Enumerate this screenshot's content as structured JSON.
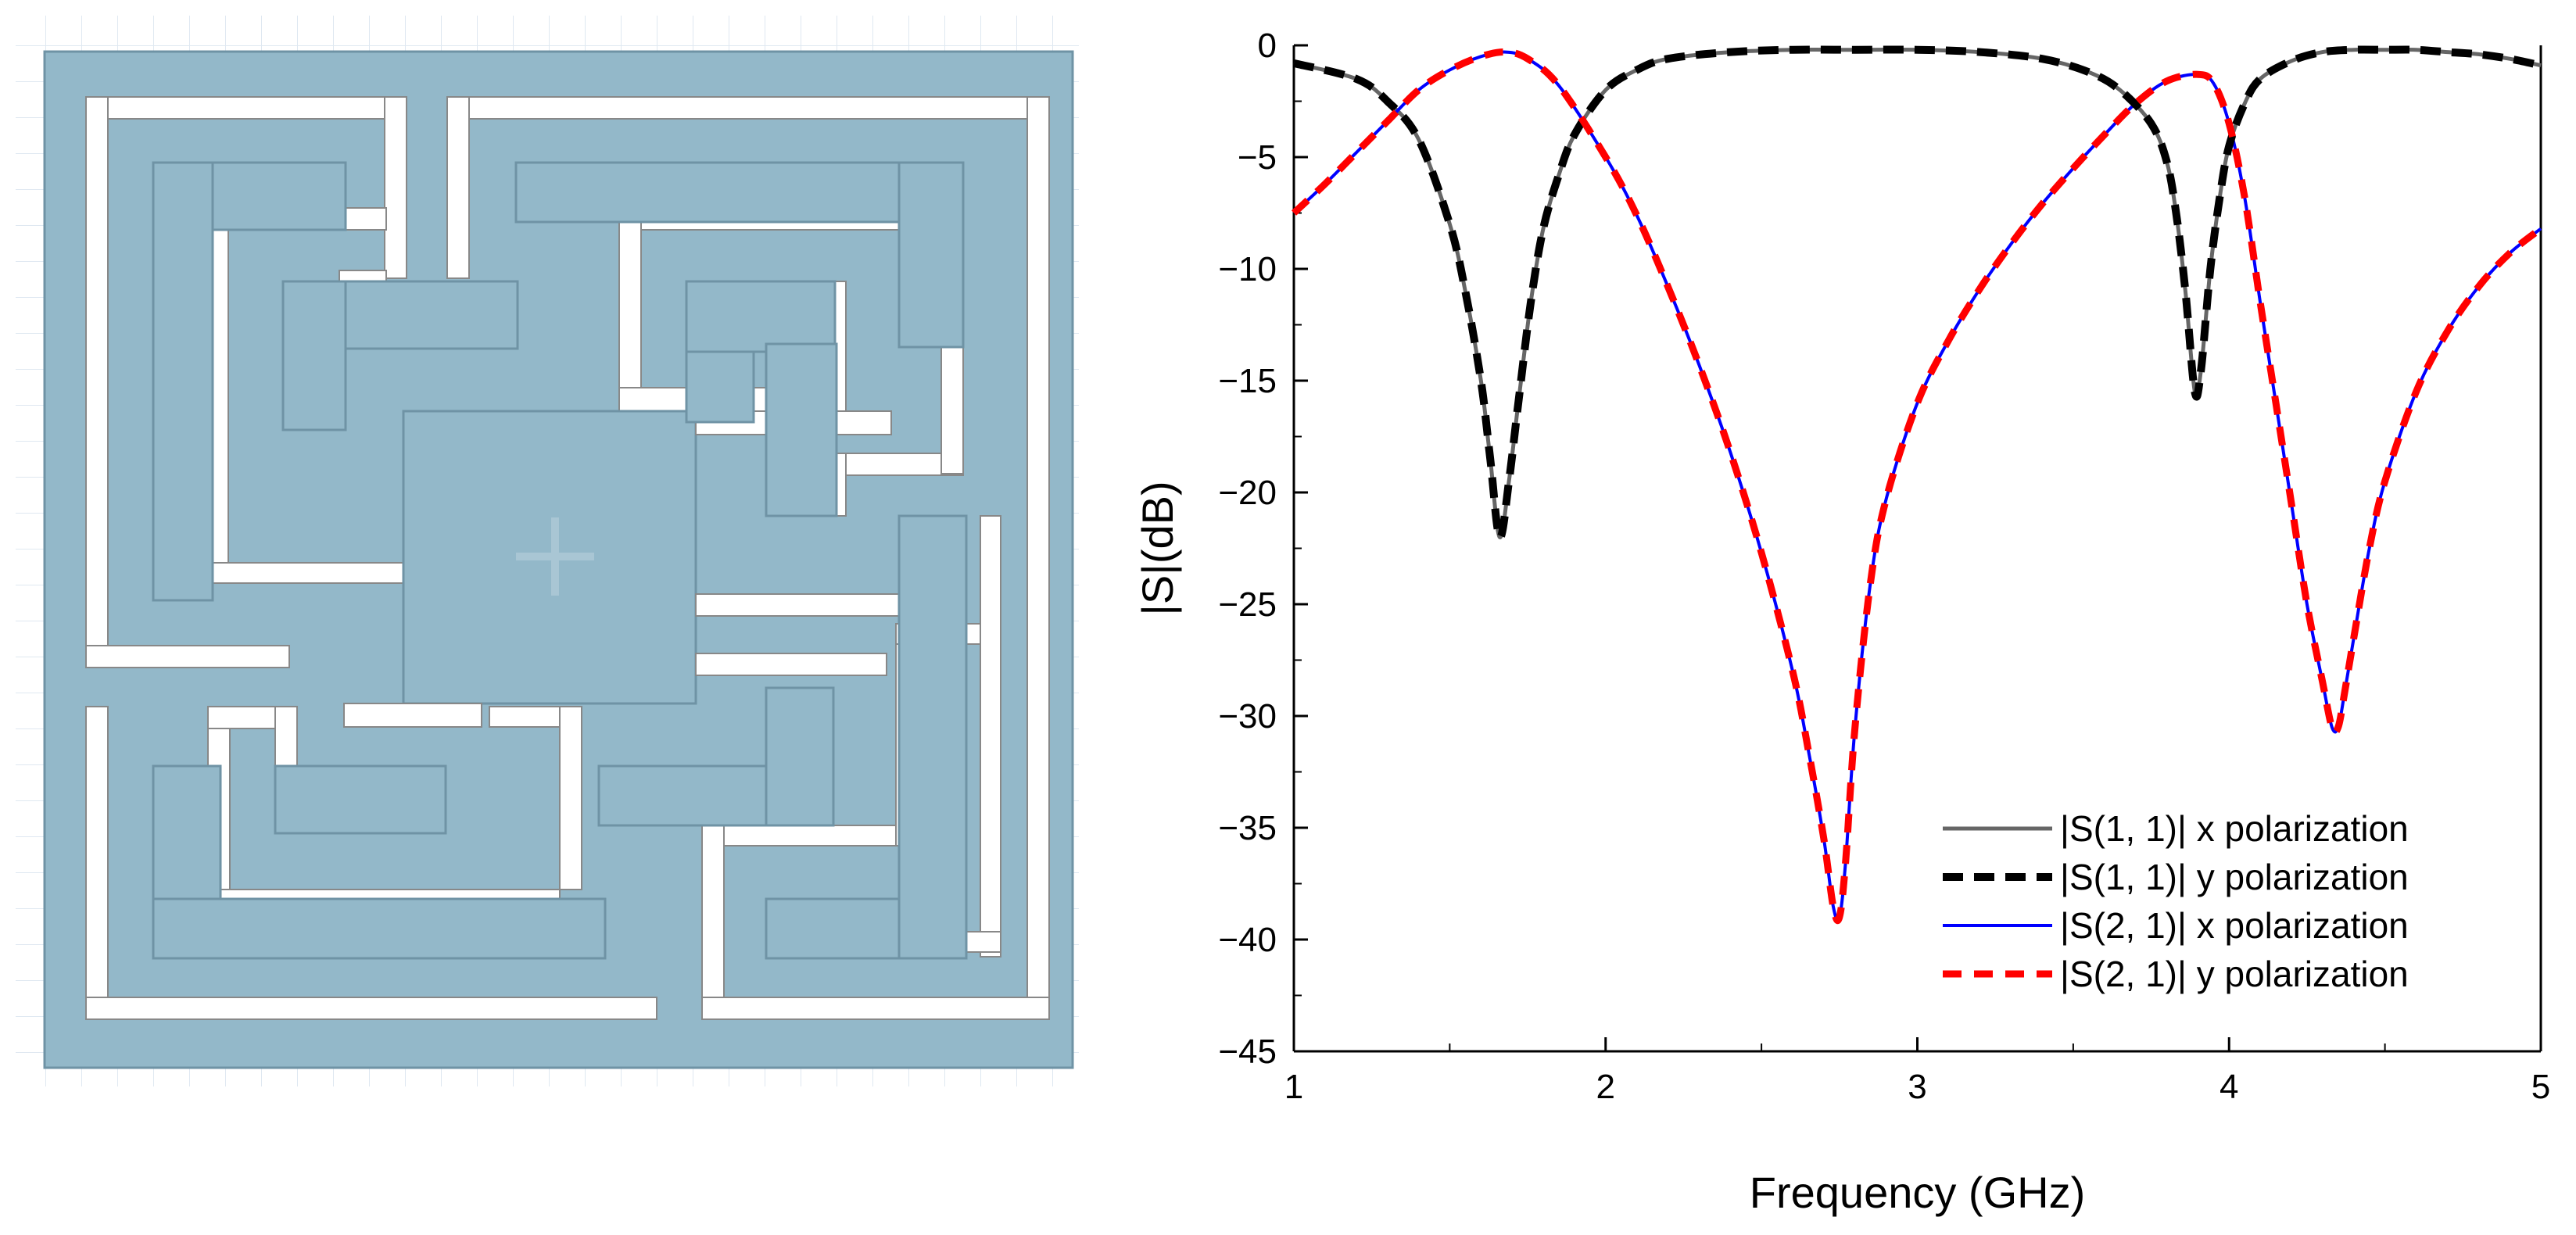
{
  "colors": {
    "metal": "#93b8c9",
    "metal_edge": "#6f93a5",
    "grid": "#dde6ef",
    "axis": "#000000"
  },
  "chart_data": {
    "type": "line",
    "xlabel": "Frequency (GHz)",
    "ylabel": "|S|(dB)",
    "xlim": [
      1,
      5
    ],
    "ylim": [
      -45,
      0
    ],
    "xticks": [
      1,
      2,
      3,
      4,
      5
    ],
    "yticks": [
      0,
      -5,
      -10,
      -15,
      -20,
      -25,
      -30,
      -35,
      -40,
      -45
    ],
    "grid": false,
    "legend_position": "bottom-right",
    "series": [
      {
        "name": "|S(1, 1)| x polarization",
        "color": "#666666",
        "style": "solid",
        "x": [
          1.0,
          1.2,
          1.3,
          1.4,
          1.5,
          1.55,
          1.6,
          1.63,
          1.66,
          1.69,
          1.72,
          1.76,
          1.8,
          1.85,
          1.9,
          2.0,
          2.1,
          2.2,
          2.4,
          2.6,
          2.8,
          3.0,
          3.2,
          3.4,
          3.55,
          3.65,
          3.75,
          3.8,
          3.83,
          3.86,
          3.89,
          3.91,
          3.94,
          3.97,
          4.0,
          4.05,
          4.1,
          4.2,
          4.3,
          4.4,
          4.5,
          4.6,
          4.7,
          4.8,
          4.9,
          5.0
        ],
        "values": [
          -0.8,
          -1.5,
          -2.5,
          -4.2,
          -8.0,
          -11.0,
          -15.0,
          -18.5,
          -22.0,
          -19.5,
          -16.0,
          -11.5,
          -8.2,
          -5.8,
          -4.0,
          -2.0,
          -1.1,
          -0.6,
          -0.3,
          -0.2,
          -0.2,
          -0.2,
          -0.3,
          -0.6,
          -1.2,
          -2.0,
          -3.5,
          -5.2,
          -7.5,
          -11.0,
          -15.5,
          -14.5,
          -10.0,
          -6.8,
          -4.5,
          -2.6,
          -1.5,
          -0.7,
          -0.3,
          -0.2,
          -0.2,
          -0.2,
          -0.3,
          -0.4,
          -0.6,
          -0.9
        ]
      },
      {
        "name": "|S(1, 1)| y polarization",
        "color": "#000000",
        "style": "dashed",
        "x": [
          1.0,
          1.2,
          1.3,
          1.4,
          1.5,
          1.55,
          1.6,
          1.63,
          1.66,
          1.69,
          1.72,
          1.76,
          1.8,
          1.85,
          1.9,
          2.0,
          2.1,
          2.2,
          2.4,
          2.6,
          2.8,
          3.0,
          3.2,
          3.4,
          3.55,
          3.65,
          3.75,
          3.8,
          3.83,
          3.86,
          3.89,
          3.91,
          3.94,
          3.97,
          4.0,
          4.05,
          4.1,
          4.2,
          4.3,
          4.4,
          4.5,
          4.6,
          4.7,
          4.8,
          4.9,
          5.0
        ],
        "values": [
          -0.8,
          -1.5,
          -2.5,
          -4.2,
          -8.0,
          -11.0,
          -15.0,
          -18.5,
          -22.0,
          -19.5,
          -16.0,
          -11.5,
          -8.2,
          -5.8,
          -4.0,
          -2.0,
          -1.1,
          -0.6,
          -0.3,
          -0.2,
          -0.2,
          -0.2,
          -0.3,
          -0.6,
          -1.2,
          -2.0,
          -3.5,
          -5.2,
          -7.5,
          -11.0,
          -15.5,
          -14.5,
          -10.0,
          -6.8,
          -4.5,
          -2.6,
          -1.5,
          -0.7,
          -0.3,
          -0.2,
          -0.2,
          -0.2,
          -0.3,
          -0.4,
          -0.6,
          -0.9
        ]
      },
      {
        "name": "|S(2, 1)| x polarization",
        "color": "#0000ff",
        "style": "solid",
        "x": [
          1.0,
          1.1,
          1.2,
          1.3,
          1.4,
          1.5,
          1.6,
          1.68,
          1.75,
          1.85,
          2.0,
          2.1,
          2.2,
          2.3,
          2.4,
          2.5,
          2.6,
          2.65,
          2.7,
          2.73,
          2.75,
          2.77,
          2.8,
          2.85,
          2.9,
          3.0,
          3.1,
          3.2,
          3.3,
          3.4,
          3.5,
          3.6,
          3.7,
          3.8,
          3.9,
          3.95,
          4.0,
          4.05,
          4.1,
          4.15,
          4.2,
          4.25,
          4.3,
          4.33,
          4.35,
          4.37,
          4.4,
          4.45,
          4.5,
          4.6,
          4.7,
          4.8,
          4.9,
          5.0
        ],
        "values": [
          -7.5,
          -6.2,
          -4.8,
          -3.4,
          -2.0,
          -1.1,
          -0.5,
          -0.3,
          -0.6,
          -1.8,
          -5.0,
          -7.6,
          -10.8,
          -14.3,
          -18.2,
          -22.7,
          -28.0,
          -31.5,
          -35.5,
          -38.5,
          -39.0,
          -36.5,
          -30.5,
          -24.0,
          -20.3,
          -16.0,
          -13.2,
          -10.9,
          -8.9,
          -7.1,
          -5.5,
          -4.0,
          -2.6,
          -1.6,
          -1.3,
          -1.7,
          -3.5,
          -6.8,
          -11.5,
          -16.0,
          -20.5,
          -25.0,
          -28.5,
          -30.5,
          -30.5,
          -29.0,
          -26.5,
          -22.5,
          -19.5,
          -15.5,
          -12.8,
          -10.8,
          -9.3,
          -8.2
        ]
      },
      {
        "name": "|S(2, 1)| y polarization",
        "color": "#ff0000",
        "style": "dashed",
        "x": [
          1.0,
          1.1,
          1.2,
          1.3,
          1.4,
          1.5,
          1.6,
          1.68,
          1.75,
          1.85,
          2.0,
          2.1,
          2.2,
          2.3,
          2.4,
          2.5,
          2.6,
          2.65,
          2.7,
          2.73,
          2.75,
          2.77,
          2.8,
          2.85,
          2.9,
          3.0,
          3.1,
          3.2,
          3.3,
          3.4,
          3.5,
          3.6,
          3.7,
          3.8,
          3.9,
          3.95,
          4.0,
          4.05,
          4.1,
          4.15,
          4.2,
          4.25,
          4.3,
          4.33,
          4.35,
          4.37,
          4.4,
          4.45,
          4.5,
          4.6,
          4.7,
          4.8,
          4.9,
          5.0
        ],
        "values": [
          -7.5,
          -6.2,
          -4.8,
          -3.4,
          -2.0,
          -1.1,
          -0.5,
          -0.3,
          -0.6,
          -1.8,
          -5.0,
          -7.6,
          -10.8,
          -14.3,
          -18.2,
          -22.7,
          -28.0,
          -31.5,
          -35.5,
          -38.5,
          -39.0,
          -36.5,
          -30.5,
          -24.0,
          -20.3,
          -16.0,
          -13.2,
          -10.9,
          -8.9,
          -7.1,
          -5.5,
          -4.0,
          -2.6,
          -1.6,
          -1.3,
          -1.7,
          -3.5,
          -6.8,
          -11.5,
          -16.0,
          -20.5,
          -25.0,
          -28.5,
          -30.5,
          -30.5,
          -29.0,
          -26.5,
          -22.5,
          -19.5,
          -15.5,
          -12.8,
          -10.8,
          -9.3,
          -8.2
        ]
      }
    ]
  }
}
